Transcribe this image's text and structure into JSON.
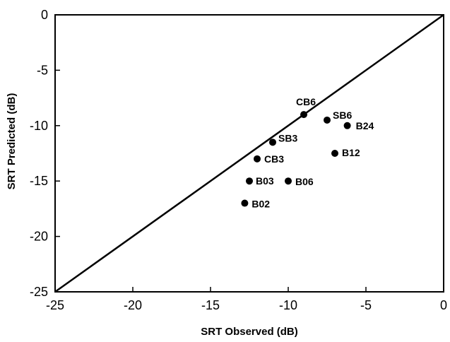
{
  "chart_data": {
    "type": "scatter",
    "title": "",
    "xlabel": "SRT Observed (dB)",
    "ylabel": "SRT Predicted (dB)",
    "xlim": [
      -25,
      0
    ],
    "ylim": [
      -25,
      0
    ],
    "x_ticks": [
      -25,
      -20,
      -15,
      -10,
      -5,
      0
    ],
    "y_ticks": [
      -25,
      -20,
      -15,
      -10,
      -5,
      0
    ],
    "grid": false,
    "reference_line": "identity (y = x)",
    "points": [
      {
        "label": "CB6",
        "x": -9.0,
        "y": -9.0
      },
      {
        "label": "SB6",
        "x": -7.5,
        "y": -9.5
      },
      {
        "label": "B24",
        "x": -6.2,
        "y": -10.0
      },
      {
        "label": "SB3",
        "x": -11.0,
        "y": -11.5
      },
      {
        "label": "B12",
        "x": -7.0,
        "y": -12.5
      },
      {
        "label": "CB3",
        "x": -12.0,
        "y": -13.0
      },
      {
        "label": "B03",
        "x": -12.5,
        "y": -15.0
      },
      {
        "label": "B06",
        "x": -10.0,
        "y": -15.0
      },
      {
        "label": "B02",
        "x": -12.8,
        "y": -17.0
      }
    ]
  }
}
